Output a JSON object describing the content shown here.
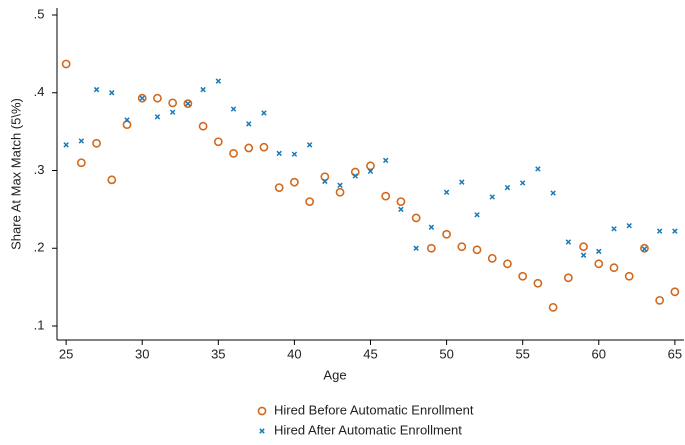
{
  "chart_data": {
    "type": "scatter",
    "x_label": "Age",
    "y_label": "Share At Max Match (5\\%)",
    "xlim": [
      24.4,
      65.6
    ],
    "ylim": [
      0.082,
      0.509
    ],
    "xticks": [
      25,
      30,
      35,
      40,
      45,
      50,
      55,
      60,
      65
    ],
    "yticks": [
      {
        "value": 0.1,
        "label": ".1"
      },
      {
        "value": 0.2,
        "label": ".2"
      },
      {
        "value": 0.3,
        "label": ".3"
      },
      {
        "value": 0.4,
        "label": ".4"
      },
      {
        "value": 0.5,
        "label": ".5"
      }
    ],
    "grid": false,
    "legend": "bottom",
    "x": [
      25,
      26,
      27,
      28,
      29,
      30,
      31,
      32,
      33,
      34,
      35,
      36,
      37,
      38,
      39,
      40,
      41,
      42,
      43,
      44,
      45,
      46,
      47,
      48,
      49,
      50,
      51,
      52,
      53,
      54,
      55,
      56,
      57,
      58,
      59,
      60,
      61,
      62,
      63,
      64,
      65
    ],
    "series": [
      {
        "name": "Hired Before Automatic Enrollment",
        "color": "#d2691e",
        "marker": "circle",
        "values": [
          0.437,
          0.31,
          0.335,
          0.288,
          0.359,
          0.393,
          0.393,
          0.387,
          0.386,
          0.357,
          0.337,
          0.322,
          0.329,
          0.33,
          0.278,
          0.285,
          0.26,
          0.292,
          0.272,
          0.298,
          0.306,
          0.267,
          0.26,
          0.239,
          0.2,
          0.218,
          0.202,
          0.198,
          0.187,
          0.18,
          0.164,
          0.155,
          0.124,
          0.162,
          0.202,
          0.18,
          0.175,
          0.164,
          0.2,
          0.133,
          0.144
        ]
      },
      {
        "name": "Hired After Automatic Enrollment",
        "color": "#1a7ab5",
        "marker": "x",
        "values": [
          0.333,
          0.338,
          0.404,
          0.4,
          0.365,
          0.393,
          0.369,
          0.375,
          0.386,
          0.404,
          0.415,
          0.379,
          0.36,
          0.374,
          0.322,
          0.321,
          0.333,
          0.286,
          0.281,
          0.293,
          0.299,
          0.313,
          0.25,
          0.2,
          0.227,
          0.272,
          0.285,
          0.243,
          0.266,
          0.278,
          0.284,
          0.302,
          0.271,
          0.208,
          0.191,
          0.196,
          0.225,
          0.229,
          0.199,
          0.222,
          0.222
        ]
      }
    ]
  }
}
